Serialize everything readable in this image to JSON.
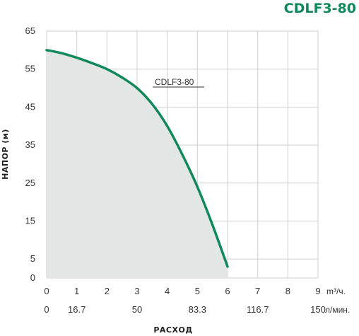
{
  "chart_data": {
    "type": "area",
    "title": "CDLF3-80",
    "ylabel": "НАПОР (м)",
    "xlabel": "РАСХОД",
    "x_unit_primary": "m³/ч.",
    "x_unit_secondary": "л/мин.",
    "xlim": [
      0,
      9
    ],
    "ylim": [
      0,
      65
    ],
    "x_ticks": [
      0,
      1,
      2,
      3,
      4,
      5,
      6,
      7,
      8,
      9
    ],
    "y_ticks": [
      0,
      5,
      15,
      25,
      35,
      45,
      55,
      65
    ],
    "x_ticks_secondary": [
      {
        "value": 0,
        "label": "0"
      },
      {
        "value": 1,
        "label": "16.7"
      },
      {
        "value": 3,
        "label": "50"
      },
      {
        "value": 5,
        "label": "83.3"
      },
      {
        "value": 7,
        "label": "116.7"
      },
      {
        "value": 9,
        "label": "150"
      }
    ],
    "grid": true,
    "series": [
      {
        "name": "CDLF3-80",
        "color": "#11885a",
        "fill": "#e2e6e5",
        "x": [
          0,
          0.5,
          1,
          1.5,
          2,
          2.5,
          3,
          3.5,
          4,
          4.5,
          5,
          5.5,
          6
        ],
        "y": [
          60,
          59.2,
          58,
          56.6,
          55,
          52.8,
          50,
          45.8,
          40,
          32.5,
          24,
          14,
          3
        ]
      }
    ]
  }
}
